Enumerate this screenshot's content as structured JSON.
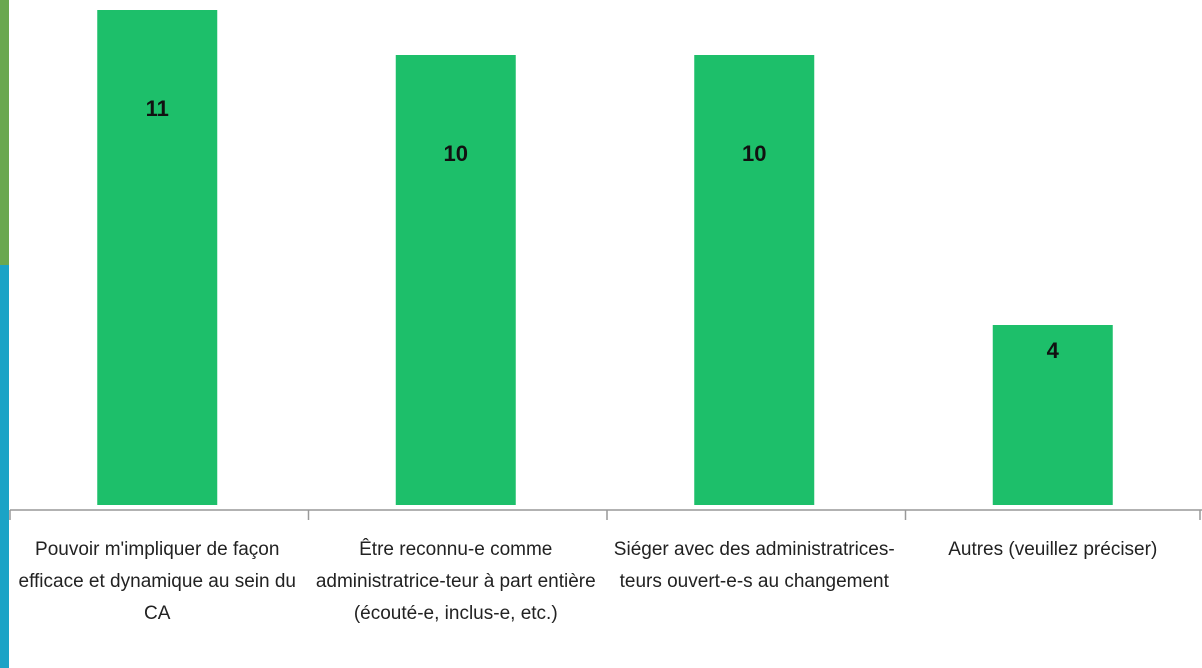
{
  "chart_data": {
    "type": "bar",
    "categories": [
      "Pouvoir m'impliquer de façon efficace et dynamique au sein du CA",
      "Être reconnu-e comme administratrice-teur à part entière (écouté-e, inclus-e, etc.)",
      "Siéger avec des administratrices-teurs ouvert-e-s au changement",
      "Autres (veuillez préciser)"
    ],
    "values": [
      11,
      10,
      10,
      4
    ],
    "color": "#1dbf6a"
  }
}
